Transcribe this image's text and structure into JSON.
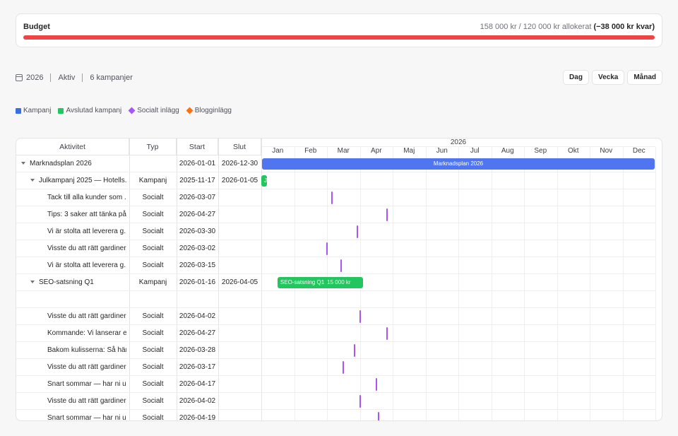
{
  "budget": {
    "title": "Budget",
    "summary": "158 000 kr / 120 000 kr allokerat",
    "remaining": "(−38 000 kr kvar)",
    "bar_color": "#ef4444"
  },
  "meta": {
    "year": "2026",
    "status": "Aktiv",
    "count": "6 kampanjer"
  },
  "views": [
    "Dag",
    "Vecka",
    "Månad"
  ],
  "legend": [
    {
      "label": "Kampanj",
      "color": "#3b6fe0",
      "shape": "square"
    },
    {
      "label": "Avslutad kampanj",
      "color": "#22c55e",
      "shape": "square"
    },
    {
      "label": "Socialt inlägg",
      "color": "#a855f7",
      "shape": "diamond"
    },
    {
      "label": "Blogginlägg",
      "color": "#f97316",
      "shape": "diamond"
    }
  ],
  "grid": {
    "headers": [
      "Aktivitet",
      "Typ",
      "Start",
      "Slut"
    ],
    "year": "2026",
    "months": [
      "Jan",
      "Feb",
      "Mar",
      "Apr",
      "Maj",
      "Jun",
      "Jul",
      "Aug",
      "Sep",
      "Okt",
      "Nov",
      "Dec"
    ]
  },
  "rows": [
    {
      "name": "Marknadsplan 2026",
      "type": "",
      "start": "2026-01-01",
      "end": "2026-12-30",
      "level": 0,
      "expander": true,
      "bar": {
        "kind": "blue",
        "label": "Marknadsplan 2026"
      }
    },
    {
      "name": "Julkampanj 2025 — Hotells...",
      "type": "Kampanj",
      "start": "2025-11-17",
      "end": "2026-01-05",
      "level": 1,
      "expander": true,
      "bar": {
        "kind": "green",
        "label": "Ju"
      }
    },
    {
      "name": "Tack till alla kunder som ...",
      "type": "Socialt",
      "start": "2026-03-07",
      "end": "",
      "level": 2,
      "tick": true
    },
    {
      "name": "Tips: 3 saker att tänka på...",
      "type": "Socialt",
      "start": "2026-04-27",
      "end": "",
      "level": 2,
      "tick": true
    },
    {
      "name": "Vi är stolta att leverera g...",
      "type": "Socialt",
      "start": "2026-03-30",
      "end": "",
      "level": 2,
      "tick": true
    },
    {
      "name": "Visste du att rätt gardiner...",
      "type": "Socialt",
      "start": "2026-03-02",
      "end": "",
      "level": 2,
      "tick": true
    },
    {
      "name": "Vi är stolta att leverera g...",
      "type": "Socialt",
      "start": "2026-03-15",
      "end": "",
      "level": 2,
      "tick": true
    },
    {
      "name": "SEO-satsning Q1",
      "type": "Kampanj",
      "start": "2026-01-16",
      "end": "2026-04-05",
      "level": 1,
      "expander": true,
      "bar": {
        "kind": "green",
        "label": "SEO-satsning Q1",
        "amount": "15 000 kr"
      }
    },
    {
      "name": "",
      "type": "",
      "start": "",
      "end": "",
      "level": 2,
      "spacer": true
    },
    {
      "name": "Visste du att rätt gardiner...",
      "type": "Socialt",
      "start": "2026-04-02",
      "end": "",
      "level": 2,
      "tick": true
    },
    {
      "name": "Kommande: Vi lanserar e...",
      "type": "Socialt",
      "start": "2026-04-27",
      "end": "",
      "level": 2,
      "tick": true
    },
    {
      "name": "Bakom kulisserna: Så här...",
      "type": "Socialt",
      "start": "2026-03-28",
      "end": "",
      "level": 2,
      "tick": true
    },
    {
      "name": "Visste du att rätt gardiner...",
      "type": "Socialt",
      "start": "2026-03-17",
      "end": "",
      "level": 2,
      "tick": true
    },
    {
      "name": "Snart sommar — har ni u...",
      "type": "Socialt",
      "start": "2026-04-17",
      "end": "",
      "level": 2,
      "tick": true
    },
    {
      "name": "Visste du att rätt gardiner...",
      "type": "Socialt",
      "start": "2026-04-02",
      "end": "",
      "level": 2,
      "tick": true
    },
    {
      "name": "Snart sommar — har ni u...",
      "type": "Socialt",
      "start": "2026-04-19",
      "end": "",
      "level": 2,
      "tick": true
    }
  ]
}
